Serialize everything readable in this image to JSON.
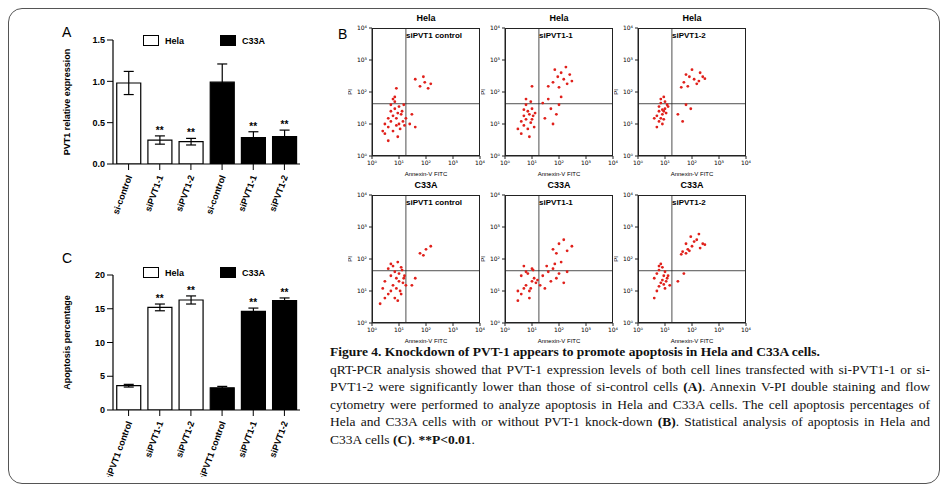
{
  "panel_labels": [
    "A",
    "B",
    "C"
  ],
  "chart_data": [
    {
      "type": "bar",
      "categories": [
        "si-control",
        "siPVT1-1",
        "siPVT1-2",
        "si-control",
        "siPVT1-1",
        "siPVT1-2"
      ],
      "series": [
        {
          "name": "Hela",
          "color": "#ffffff",
          "values": [
            0.98,
            0.29,
            0.27,
            null,
            null,
            null
          ],
          "errors": [
            0.14,
            0.05,
            0.04,
            null,
            null,
            null
          ]
        },
        {
          "name": "C33A",
          "color": "#000000",
          "values": [
            null,
            null,
            null,
            0.99,
            0.32,
            0.33
          ],
          "errors": [
            null,
            null,
            null,
            0.22,
            0.07,
            0.08
          ]
        }
      ],
      "annotations": [
        null,
        "**",
        "**",
        null,
        "**",
        "**"
      ],
      "ylabel": "PVT1 relative expression",
      "ylim": [
        0,
        1.5
      ],
      "yticks": [
        {
          "value": 0,
          "label": "0.0"
        },
        0.5,
        {
          "value": 1,
          "label": "1.0"
        },
        1.5
      ],
      "legend": "top"
    },
    {
      "type": "scatter",
      "title": "Hela",
      "subtitle": "siPVT1 control",
      "xlabel": "Annexin-V FITC",
      "ylabel": "PI",
      "log": true,
      "color": "#e0201b",
      "xlim": [
        1,
        10000
      ],
      "ylim": [
        1,
        10000
      ],
      "xticks": [
        {
          "value": 1,
          "label": "10⁰"
        },
        {
          "value": 10,
          "label": "10¹"
        },
        {
          "value": 100,
          "label": "10²"
        },
        {
          "value": 1000,
          "label": "10³"
        },
        {
          "value": 10000,
          "label": "10⁴"
        }
      ],
      "yticks": [
        {
          "value": 1,
          "label": "10⁰"
        },
        {
          "value": 10,
          "label": "10¹"
        },
        {
          "value": 100,
          "label": "10²"
        },
        {
          "value": 1000,
          "label": "10³"
        },
        {
          "value": 10000,
          "label": "10⁴"
        }
      ],
      "quadrant_x": 18,
      "quadrant_y": 43,
      "x": [
        3,
        4,
        5,
        6,
        8,
        10,
        12,
        5,
        7,
        9,
        4,
        6,
        11,
        14,
        3,
        8,
        13,
        15,
        7,
        10,
        5,
        16,
        18,
        2.5,
        9,
        25,
        40,
        30,
        60,
        90,
        120,
        80,
        150,
        40,
        8,
        6,
        4,
        7
      ],
      "values": [
        5,
        8,
        12,
        6,
        15,
        10,
        20,
        25,
        30,
        4,
        3,
        18,
        7,
        12,
        10,
        9,
        25,
        40,
        50,
        35,
        40,
        9,
        15,
        6,
        22,
        10,
        8,
        20,
        150,
        200,
        130,
        300,
        180,
        250,
        130,
        60,
        15,
        70
      ]
    },
    {
      "type": "scatter",
      "title": "Hela",
      "subtitle": "siPVT1-1",
      "xlabel": "Annexin-V FITC",
      "ylabel": "PI",
      "log": true,
      "color": "#e0201b",
      "xlim": [
        1,
        10000
      ],
      "ylim": [
        1,
        10000
      ],
      "xticks": [
        {
          "value": 1,
          "label": "10⁰"
        },
        {
          "value": 10,
          "label": "10¹"
        },
        {
          "value": 100,
          "label": "10²"
        },
        {
          "value": 1000,
          "label": "10³"
        },
        {
          "value": 10000,
          "label": "10⁴"
        }
      ],
      "yticks": [
        {
          "value": 1,
          "label": "10⁰"
        },
        {
          "value": 10,
          "label": "10¹"
        },
        {
          "value": 100,
          "label": "10²"
        },
        {
          "value": 1000,
          "label": "10³"
        },
        {
          "value": 10000,
          "label": "10⁴"
        }
      ],
      "quadrant_x": 18,
      "quadrant_y": 43,
      "x": [
        4,
        5,
        6,
        7,
        8,
        9,
        10,
        5,
        6,
        8,
        4,
        11,
        12,
        3,
        7,
        9,
        6,
        10,
        13,
        5,
        30,
        50,
        80,
        40,
        100,
        25,
        60,
        120,
        60,
        90,
        150,
        200,
        70,
        120,
        250,
        40,
        100,
        180,
        300,
        10
      ],
      "values": [
        5,
        9,
        14,
        7,
        20,
        11,
        30,
        28,
        40,
        4,
        12,
        18,
        8,
        7,
        25,
        50,
        60,
        14,
        22,
        18,
        15,
        30,
        20,
        60,
        40,
        45,
        10,
        70,
        200,
        300,
        250,
        180,
        500,
        400,
        350,
        150,
        140,
        600,
        220,
        150
      ]
    },
    {
      "type": "scatter",
      "title": "Hela",
      "subtitle": "siPVT1-2",
      "xlabel": "Annexin-V FITC",
      "ylabel": "PI",
      "log": true,
      "color": "#e0201b",
      "xlim": [
        1,
        10000
      ],
      "ylim": [
        1,
        10000
      ],
      "xticks": [
        {
          "value": 1,
          "label": "10⁰"
        },
        {
          "value": 10,
          "label": "10¹"
        },
        {
          "value": 100,
          "label": "10²"
        },
        {
          "value": 1000,
          "label": "10³"
        },
        {
          "value": 10000,
          "label": "10⁴"
        }
      ],
      "yticks": [
        {
          "value": 1,
          "label": "10⁰"
        },
        {
          "value": 10,
          "label": "10¹"
        },
        {
          "value": 100,
          "label": "10²"
        },
        {
          "value": 1000,
          "label": "10³"
        },
        {
          "value": 10000,
          "label": "10⁴"
        }
      ],
      "quadrant_x": 18,
      "quadrant_y": 43,
      "x": [
        5,
        6,
        7,
        8,
        9,
        10,
        6,
        7,
        8,
        5,
        9,
        11,
        12,
        7,
        8,
        6,
        10,
        13,
        4,
        9,
        30,
        60,
        45,
        90,
        50,
        80,
        120,
        200,
        150,
        70,
        100,
        250,
        60,
        180,
        40,
        300
      ],
      "values": [
        8,
        12,
        15,
        20,
        25,
        30,
        35,
        45,
        10,
        18,
        14,
        22,
        40,
        60,
        28,
        25,
        50,
        35,
        15,
        70,
        20,
        40,
        12,
        30,
        200,
        300,
        250,
        400,
        180,
        150,
        500,
        300,
        350,
        220,
        140,
        260
      ]
    },
    {
      "type": "scatter",
      "title": "C33A",
      "subtitle": "siPVT1 control",
      "xlabel": "Annexin-V FITC",
      "ylabel": "PI",
      "log": true,
      "color": "#e0201b",
      "xlim": [
        1,
        10000
      ],
      "ylim": [
        1,
        10000
      ],
      "xticks": [
        {
          "value": 1,
          "label": "10⁰"
        },
        {
          "value": 10,
          "label": "10¹"
        },
        {
          "value": 100,
          "label": "10²"
        },
        {
          "value": 1000,
          "label": "10³"
        },
        {
          "value": 10000,
          "label": "10⁴"
        }
      ],
      "yticks": [
        {
          "value": 1,
          "label": "10⁰"
        },
        {
          "value": 10,
          "label": "10¹"
        },
        {
          "value": 100,
          "label": "10²"
        },
        {
          "value": 1000,
          "label": "10³"
        },
        {
          "value": 10000,
          "label": "10⁴"
        }
      ],
      "quadrant_x": 18,
      "quadrant_y": 43,
      "x": [
        2,
        3,
        4,
        5,
        6,
        8,
        10,
        12,
        15,
        3,
        5,
        7,
        9,
        11,
        14,
        4,
        6,
        8,
        10,
        13,
        2.5,
        18,
        5,
        7,
        9,
        12,
        16,
        30,
        40,
        60,
        100,
        80,
        150
      ],
      "values": [
        4,
        6,
        8,
        10,
        15,
        12,
        20,
        8,
        25,
        20,
        30,
        40,
        5,
        10,
        18,
        50,
        60,
        25,
        35,
        45,
        12,
        15,
        70,
        6,
        80,
        55,
        30,
        15,
        25,
        150,
        200,
        130,
        250
      ]
    },
    {
      "type": "scatter",
      "title": "C33A",
      "subtitle": "siPVT1-1",
      "xlabel": "Annexin-V FITC",
      "ylabel": "PI",
      "log": true,
      "color": "#e0201b",
      "xlim": [
        1,
        10000
      ],
      "ylim": [
        1,
        10000
      ],
      "xticks": [
        {
          "value": 1,
          "label": "10⁰"
        },
        {
          "value": 10,
          "label": "10¹"
        },
        {
          "value": 100,
          "label": "10²"
        },
        {
          "value": 1000,
          "label": "10³"
        },
        {
          "value": 10000,
          "label": "10⁴"
        }
      ],
      "yticks": [
        {
          "value": 1,
          "label": "10⁰"
        },
        {
          "value": 10,
          "label": "10¹"
        },
        {
          "value": 100,
          "label": "10²"
        },
        {
          "value": 1000,
          "label": "10³"
        },
        {
          "value": 10000,
          "label": "10⁴"
        }
      ],
      "quadrant_x": 18,
      "quadrant_y": 43,
      "x": [
        3,
        4,
        5,
        6,
        8,
        10,
        12,
        4,
        6,
        8,
        10,
        14,
        5,
        7,
        9,
        11,
        16,
        3,
        20,
        25,
        30,
        40,
        50,
        60,
        80,
        100,
        150,
        200,
        35,
        70,
        120,
        60,
        100,
        200,
        150,
        300,
        80
      ],
      "values": [
        5,
        8,
        12,
        15,
        10,
        20,
        25,
        30,
        40,
        6,
        50,
        18,
        60,
        35,
        12,
        45,
        22,
        10,
        15,
        30,
        12,
        40,
        20,
        50,
        25,
        35,
        18,
        40,
        60,
        70,
        80,
        200,
        300,
        180,
        400,
        250,
        150
      ]
    },
    {
      "type": "scatter",
      "title": "C33A",
      "subtitle": "siPVT1-2",
      "xlabel": "Annexin-V FITC",
      "ylabel": "PI",
      "log": true,
      "color": "#e0201b",
      "xlim": [
        1,
        10000
      ],
      "ylim": [
        1,
        10000
      ],
      "xticks": [
        {
          "value": 1,
          "label": "10⁰"
        },
        {
          "value": 10,
          "label": "10¹"
        },
        {
          "value": 100,
          "label": "10²"
        },
        {
          "value": 1000,
          "label": "10³"
        },
        {
          "value": 10000,
          "label": "10⁴"
        }
      ],
      "yticks": [
        {
          "value": 1,
          "label": "10⁰"
        },
        {
          "value": 10,
          "label": "10¹"
        },
        {
          "value": 100,
          "label": "10²"
        },
        {
          "value": 1000,
          "label": "10³"
        },
        {
          "value": 10000,
          "label": "10⁴"
        }
      ],
      "quadrant_x": 18,
      "quadrant_y": 43,
      "x": [
        4,
        5,
        6,
        7,
        8,
        9,
        10,
        12,
        5,
        6,
        8,
        10,
        11,
        7,
        9,
        13,
        4,
        6,
        15,
        30,
        50,
        40,
        70,
        60,
        100,
        80,
        150,
        120,
        200,
        90,
        250,
        60,
        180,
        300,
        45
      ],
      "values": [
        6,
        10,
        14,
        18,
        22,
        30,
        12,
        25,
        35,
        45,
        55,
        40,
        20,
        70,
        16,
        30,
        25,
        60,
        15,
        20,
        35,
        140,
        200,
        300,
        250,
        180,
        400,
        350,
        220,
        500,
        300,
        150,
        600,
        280,
        170
      ]
    },
    {
      "type": "bar",
      "categories": [
        "siPVT1 control",
        "siPVT1-1",
        "siPVT1-2",
        "siPVT1 control",
        "siPVT1-1",
        "siPVT1-2"
      ],
      "series": [
        {
          "name": "Hela",
          "color": "#ffffff",
          "values": [
            3.6,
            15.2,
            16.3,
            null,
            null,
            null
          ],
          "errors": [
            0.2,
            0.5,
            0.6,
            null,
            null,
            null
          ]
        },
        {
          "name": "C33A",
          "color": "#000000",
          "values": [
            null,
            null,
            null,
            3.3,
            14.6,
            16.2
          ],
          "errors": [
            null,
            null,
            null,
            0.2,
            0.5,
            0.4
          ]
        }
      ],
      "annotations": [
        null,
        "**",
        "**",
        null,
        "**",
        "**"
      ],
      "ylabel": "Apoptosis percentage",
      "ylim": [
        0,
        20
      ],
      "yticks": [
        0,
        5,
        10,
        15,
        20
      ],
      "legend": "top"
    }
  ],
  "caption": {
    "title": "Figure 4. Knockdown of PVT-1 appears to promote apoptosis in Hela and C33A cells.",
    "body": [
      {
        "text": "qRT-PCR analysis showed that PVT-1 expression levels of both cell lines transfected with si-PVT1-1 or si-PVT1-2 were significantly lower than those of si-control cells ",
        "bold": false
      },
      {
        "text": "(A)",
        "bold": true
      },
      {
        "text": ". Annexin V-PI double staining and flow cytometry were performed to analyze apoptosis in Hela and C33A cells. The cell apoptosis percentages of Hela and C33A cells with or without PVT-1 knock-down ",
        "bold": false
      },
      {
        "text": "(B)",
        "bold": true
      },
      {
        "text": ". Statistical analysis of apoptosis in Hela and C33A cells ",
        "bold": false
      },
      {
        "text": "(C)",
        "bold": true
      },
      {
        "text": ". ",
        "bold": false
      },
      {
        "text": "**P<0.01",
        "bold": true
      },
      {
        "text": ".",
        "bold": false
      }
    ]
  }
}
